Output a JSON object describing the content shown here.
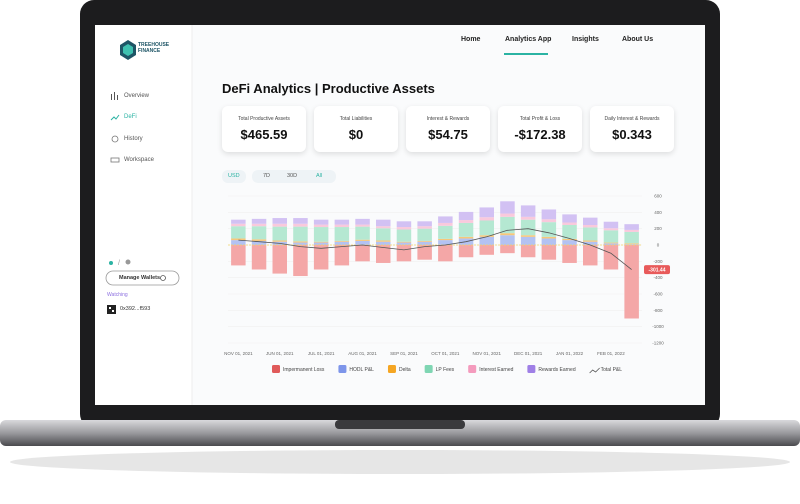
{
  "brand": "TREEHOUSE FINANCE",
  "nav": [
    "Home",
    "Analytics App",
    "Insights",
    "About Us"
  ],
  "sidebar": {
    "items": [
      "Overview",
      "DeFi",
      "History",
      "Workspace"
    ],
    "manage_button": "Manage Wallets",
    "watching_label": "Watching",
    "wallet": "0x392...f593"
  },
  "page_title": "DeFi Analytics | Productive Assets",
  "cards": [
    {
      "label": "Total Productive Assets",
      "value": "$465.59"
    },
    {
      "label": "Total Liabilities",
      "value": "$0"
    },
    {
      "label": "Interest & Rewards",
      "value": "$54.75"
    },
    {
      "label": "Total Profit & Loss",
      "value": "-$172.38"
    },
    {
      "label": "Daily Interest & Rewards",
      "value": "$0.343"
    }
  ],
  "currency_button": "USD",
  "range_buttons": [
    "7D",
    "30D",
    "All"
  ],
  "chart_data": {
    "type": "bar",
    "categories": [
      "NOV 01, 2021",
      null,
      "JUN 01, 2021",
      null,
      "JUL 01, 2021",
      null,
      "AUG 01, 2021",
      null,
      "SEP 01, 2021",
      null,
      "OCT 01, 2021",
      null,
      "NOV 01, 2021",
      null,
      "DEC 01, 2021",
      null,
      "JAN 01, 2022",
      null,
      "FEB 01, 2022",
      null
    ],
    "ylim": [
      -1200,
      600
    ],
    "yticks": [
      600,
      400,
      200,
      0,
      -200,
      -400,
      -600,
      -800,
      -1000,
      -1200
    ],
    "grid": true,
    "series": [
      {
        "name": "Impermanent Loss",
        "color": "#f4a7a7",
        "legend_color": "#e05a5a",
        "values": [
          -250,
          -300,
          -350,
          -380,
          -300,
          -250,
          -200,
          -220,
          -200,
          -180,
          -200,
          -150,
          -120,
          -100,
          -150,
          -180,
          -220,
          -250,
          -300,
          -900
        ]
      },
      {
        "name": "HODL P&L",
        "color": "#b3c2f2",
        "legend_color": "#7d95ea",
        "values": [
          60,
          50,
          40,
          30,
          30,
          40,
          50,
          40,
          30,
          40,
          60,
          80,
          100,
          120,
          100,
          80,
          60,
          40,
          20,
          10
        ]
      },
      {
        "name": "Delta",
        "color": "#f7c77a",
        "legend_color": "#f5a623",
        "values": [
          20,
          20,
          15,
          15,
          10,
          10,
          15,
          15,
          10,
          10,
          15,
          20,
          20,
          25,
          20,
          20,
          15,
          15,
          10,
          10
        ]
      },
      {
        "name": "LP Fees",
        "color": "#b5e8d2",
        "legend_color": "#7fd6b3",
        "values": [
          150,
          160,
          170,
          180,
          180,
          170,
          160,
          150,
          150,
          150,
          160,
          170,
          180,
          200,
          190,
          180,
          170,
          160,
          150,
          140
        ]
      },
      {
        "name": "Interest Earned",
        "color": "#f9c9dc",
        "legend_color": "#f49bbd",
        "values": [
          30,
          30,
          35,
          35,
          30,
          30,
          25,
          25,
          30,
          30,
          35,
          35,
          40,
          40,
          35,
          35,
          30,
          30,
          25,
          25
        ]
      },
      {
        "name": "Rewards Earned",
        "color": "#d2c1f3",
        "legend_color": "#9f7fe6",
        "values": [
          50,
          60,
          70,
          70,
          60,
          60,
          70,
          80,
          70,
          60,
          80,
          100,
          120,
          150,
          140,
          120,
          100,
          90,
          80,
          70
        ]
      },
      {
        "name": "Total P&L",
        "color": "#555555",
        "kind": "line",
        "values": [
          60,
          40,
          20,
          -20,
          -40,
          -20,
          0,
          -30,
          -60,
          -20,
          0,
          40,
          100,
          180,
          200,
          150,
          80,
          0,
          -100,
          -301.44
        ]
      }
    ]
  }
}
